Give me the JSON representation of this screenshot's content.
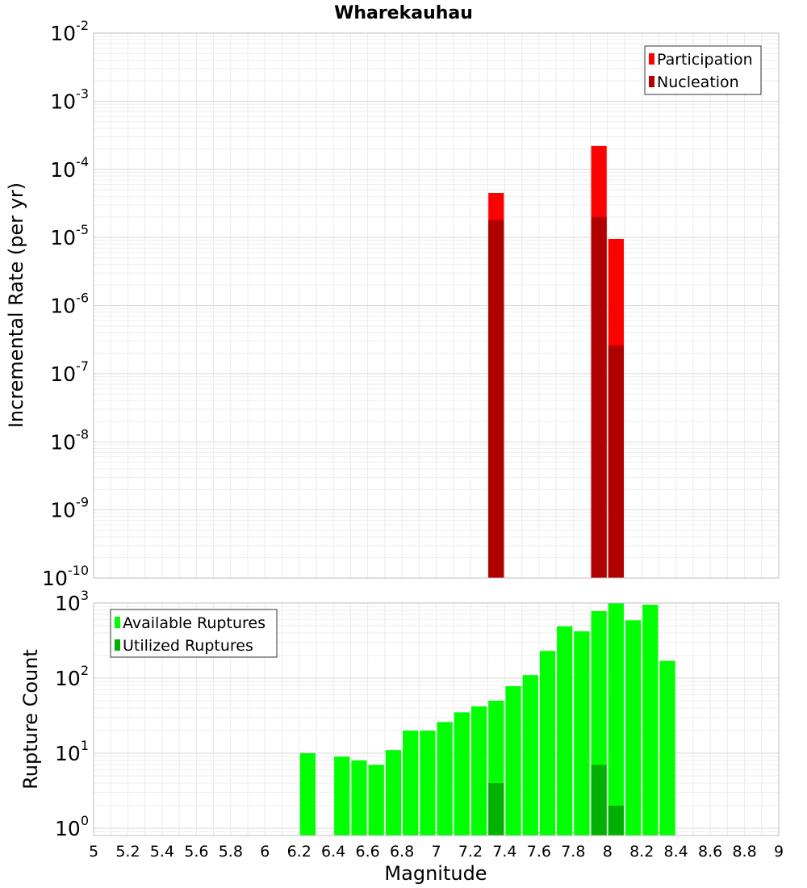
{
  "chart_data": [
    {
      "type": "bar",
      "title": "Wharekauhau",
      "ylabel": "Incremental Rate (per yr)",
      "xlabel": "",
      "yscale": "log",
      "ylim": [
        1e-10,
        0.01
      ],
      "xlim": [
        5,
        9
      ],
      "grid": true,
      "legend_position": "top-right",
      "overlay": true,
      "bar_width": 0.1,
      "series": [
        {
          "name": "Participation",
          "color": "#ff0000",
          "points": [
            {
              "x": 7.35,
              "y": 4.5e-05
            },
            {
              "x": 7.95,
              "y": 0.00022
            },
            {
              "x": 8.05,
              "y": 9.5e-06
            }
          ]
        },
        {
          "name": "Nucleation",
          "color": "#b00000",
          "points": [
            {
              "x": 7.35,
              "y": 1.8e-05
            },
            {
              "x": 7.95,
              "y": 2e-05
            },
            {
              "x": 8.05,
              "y": 2.6e-07
            }
          ]
        }
      ]
    },
    {
      "type": "bar",
      "title": "",
      "ylabel": "Rupture Count",
      "xlabel": "Magnitude",
      "yscale": "log",
      "ylim": [
        0.8,
        1000
      ],
      "xlim": [
        5,
        9
      ],
      "grid": true,
      "legend_position": "top-left",
      "overlay": true,
      "bar_width": 0.1,
      "x_ticks": [
        "5",
        "5.2",
        "5.4",
        "5.6",
        "5.8",
        "6",
        "6.2",
        "6.4",
        "6.6",
        "6.8",
        "7",
        "7.2",
        "7.4",
        "7.6",
        "7.8",
        "8",
        "8.2",
        "8.4",
        "8.6",
        "8.8",
        "9"
      ],
      "series": [
        {
          "name": "Available Ruptures",
          "color": "#00ff00",
          "points": [
            {
              "x": 6.25,
              "y": 10
            },
            {
              "x": 6.45,
              "y": 9
            },
            {
              "x": 6.55,
              "y": 8
            },
            {
              "x": 6.65,
              "y": 7
            },
            {
              "x": 6.75,
              "y": 11
            },
            {
              "x": 6.85,
              "y": 20
            },
            {
              "x": 6.95,
              "y": 20
            },
            {
              "x": 7.05,
              "y": 26
            },
            {
              "x": 7.15,
              "y": 35
            },
            {
              "x": 7.25,
              "y": 42
            },
            {
              "x": 7.35,
              "y": 50
            },
            {
              "x": 7.45,
              "y": 78
            },
            {
              "x": 7.55,
              "y": 110
            },
            {
              "x": 7.65,
              "y": 230
            },
            {
              "x": 7.75,
              "y": 490
            },
            {
              "x": 7.85,
              "y": 420
            },
            {
              "x": 7.95,
              "y": 780
            },
            {
              "x": 8.05,
              "y": 1000
            },
            {
              "x": 8.15,
              "y": 590
            },
            {
              "x": 8.25,
              "y": 950
            },
            {
              "x": 8.35,
              "y": 170
            }
          ]
        },
        {
          "name": "Utilized Ruptures",
          "color": "#00b000",
          "points": [
            {
              "x": 7.35,
              "y": 4
            },
            {
              "x": 7.95,
              "y": 7
            },
            {
              "x": 8.05,
              "y": 2
            }
          ]
        }
      ]
    }
  ]
}
